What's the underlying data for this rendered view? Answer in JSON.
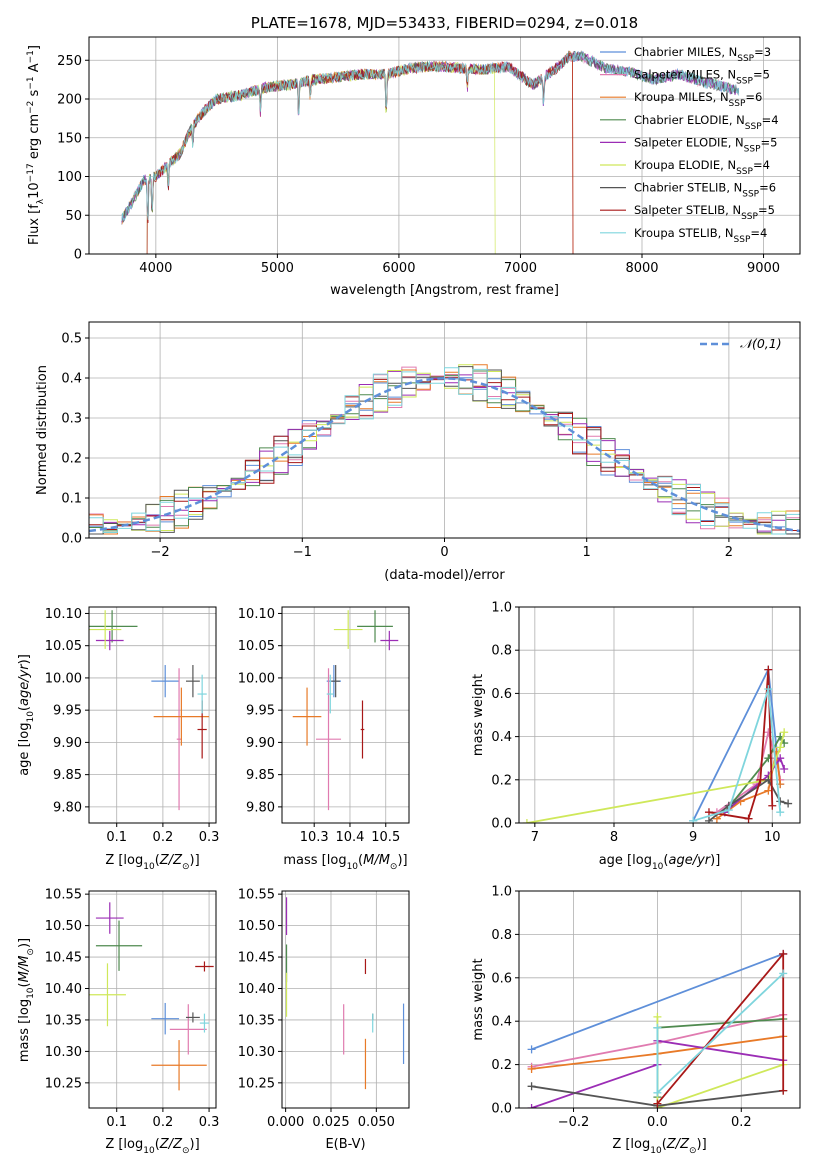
{
  "colors": {
    "chabrier_miles": "#5e8fd9",
    "salpeter_miles": "#e07bb0",
    "kroupa_miles": "#e87a28",
    "chabrier_elodie": "#4f8a4f",
    "salpeter_elodie": "#9b2db5",
    "kroupa_elodie": "#cfe85a",
    "chabrier_stelib": "#555555",
    "salpeter_stelib": "#a81818",
    "kroupa_stelib": "#7fd5dd"
  },
  "chart_data": [
    {
      "type": "line",
      "title": "PLATE=1678, MJD=53433, FIBERID=0294, z=0.018",
      "xlabel": "wavelength [Angstrom, rest frame]",
      "ylabel": "Flux [f_λ10^-17 erg cm^-2 s^-1 A^-1]",
      "xlim": [
        3450,
        9300
      ],
      "ylim": [
        0,
        280
      ],
      "xticks": [
        4000,
        5000,
        6000,
        7000,
        8000,
        9000
      ],
      "yticks": [
        0,
        50,
        100,
        150,
        200,
        250
      ],
      "legend_position": "top-right",
      "series": [
        {
          "name": "Chabrier MILES, N_SSP=3",
          "color_key": "chabrier_miles"
        },
        {
          "name": "Salpeter MILES, N_SSP=5",
          "color_key": "salpeter_miles"
        },
        {
          "name": "Kroupa MILES, N_SSP=6",
          "color_key": "kroupa_miles"
        },
        {
          "name": "Chabrier ELODIE, N_SSP=4",
          "color_key": "chabrier_elodie"
        },
        {
          "name": "Salpeter ELODIE, N_SSP=5",
          "color_key": "salpeter_elodie"
        },
        {
          "name": "Kroupa ELODIE, N_SSP=4",
          "color_key": "kroupa_elodie"
        },
        {
          "name": "Chabrier STELIB, N_SSP=6",
          "color_key": "chabrier_stelib"
        },
        {
          "name": "Salpeter STELIB, N_SSP=5",
          "color_key": "salpeter_stelib"
        },
        {
          "name": "Kroupa STELIB, N_SSP=4",
          "color_key": "kroupa_stelib"
        }
      ],
      "spectrum_envelope": {
        "x": [
          3720,
          3800,
          3900,
          4000,
          4100,
          4200,
          4300,
          4400,
          4500,
          4700,
          4900,
          5100,
          5300,
          5500,
          5700,
          5900,
          6100,
          6300,
          6500,
          6700,
          6900,
          7100,
          7300,
          7400,
          7500,
          7700,
          7900,
          8100,
          8300,
          8500,
          8700,
          8800
        ],
        "y": [
          45,
          65,
          95,
          100,
          115,
          130,
          165,
          185,
          200,
          205,
          215,
          218,
          225,
          228,
          232,
          232,
          240,
          242,
          240,
          238,
          242,
          218,
          240,
          255,
          255,
          240,
          235,
          225,
          232,
          222,
          215,
          210
        ]
      },
      "edges": {
        "kroupa_elodie": {
          "start": 3930,
          "end": 6790
        },
        "salpeter_stelib": {
          "start": 3930,
          "end": 7430
        },
        "kroupa_miles": {
          "end": 7430
        }
      }
    },
    {
      "type": "line",
      "xlabel": "(data-model)/error",
      "ylabel": "Normed distribution",
      "xlim": [
        -2.5,
        2.5
      ],
      "ylim": [
        0,
        0.54
      ],
      "xticks": [
        -2,
        -1,
        0,
        1,
        2
      ],
      "yticks": [
        0.0,
        0.1,
        0.2,
        0.3,
        0.4,
        0.5
      ],
      "legend_position": "top-right",
      "reference": {
        "name": "𝒩(0,1)",
        "style": "dashed"
      }
    },
    {
      "type": "scatter",
      "xlabel": "Z [log10(Z/Z⊙)]",
      "ylabel": "age [log10(age/yr)]",
      "xlim": [
        0.04,
        0.315
      ],
      "ylim": [
        9.775,
        10.11
      ],
      "xticks": [
        0.1,
        0.2,
        0.3
      ],
      "yticks": [
        9.8,
        9.85,
        9.9,
        9.95,
        10.0,
        10.05,
        10.1
      ],
      "points": [
        {
          "key": "chabrier_miles",
          "x": 0.205,
          "xerr": 0.03,
          "y": 9.995,
          "yerr": 0.025
        },
        {
          "key": "salpeter_miles",
          "x": 0.235,
          "xerr": 0.005,
          "y": 9.905,
          "yerr": 0.11
        },
        {
          "key": "kroupa_miles",
          "x": 0.24,
          "xerr": 0.06,
          "y": 9.94,
          "yerr": 0.045
        },
        {
          "key": "chabrier_elodie",
          "x": 0.09,
          "xerr": 0.055,
          "y": 10.08,
          "yerr": 0.025
        },
        {
          "key": "salpeter_elodie",
          "x": 0.085,
          "xerr": 0.03,
          "y": 10.058,
          "yerr": 0.015
        },
        {
          "key": "kroupa_elodie",
          "x": 0.075,
          "xerr": 0.035,
          "y": 10.075,
          "yerr": 0.03
        },
        {
          "key": "chabrier_stelib",
          "x": 0.265,
          "xerr": 0.015,
          "y": 9.995,
          "yerr": 0.025
        },
        {
          "key": "salpeter_stelib",
          "x": 0.285,
          "xerr": 0.01,
          "y": 9.92,
          "yerr": 0.045
        },
        {
          "key": "kroupa_stelib",
          "x": 0.285,
          "xerr": 0.01,
          "y": 9.975,
          "yerr": 0.03
        }
      ]
    },
    {
      "type": "scatter",
      "xlabel": "mass [log10(M/M⊙)]",
      "ylabel": "",
      "xlim": [
        10.21,
        10.565
      ],
      "ylim": [
        9.775,
        10.11
      ],
      "xticks": [
        10.3,
        10.4,
        10.5
      ],
      "yticks": [
        9.8,
        9.85,
        9.9,
        9.95,
        10.0,
        10.05,
        10.1
      ],
      "points": [
        {
          "key": "chabrier_miles",
          "x": 10.355,
          "xerr": 0.02,
          "y": 9.995,
          "yerr": 0.025
        },
        {
          "key": "salpeter_miles",
          "x": 10.34,
          "xerr": 0.035,
          "y": 9.905,
          "yerr": 0.11
        },
        {
          "key": "kroupa_miles",
          "x": 10.28,
          "xerr": 0.04,
          "y": 9.94,
          "yerr": 0.045
        },
        {
          "key": "chabrier_elodie",
          "x": 10.47,
          "xerr": 0.05,
          "y": 10.08,
          "yerr": 0.025
        },
        {
          "key": "salpeter_elodie",
          "x": 10.51,
          "xerr": 0.025,
          "y": 10.058,
          "yerr": 0.015
        },
        {
          "key": "kroupa_elodie",
          "x": 10.395,
          "xerr": 0.04,
          "y": 10.075,
          "yerr": 0.03
        },
        {
          "key": "chabrier_stelib",
          "x": 10.36,
          "xerr": 0.012,
          "y": 9.995,
          "yerr": 0.025
        },
        {
          "key": "salpeter_stelib",
          "x": 10.435,
          "xerr": 0.005,
          "y": 9.92,
          "yerr": 0.045
        },
        {
          "key": "kroupa_stelib",
          "x": 10.345,
          "xerr": 0.01,
          "y": 9.975,
          "yerr": 0.03
        }
      ]
    },
    {
      "type": "line",
      "xlabel": "age [log10(age/yr)]",
      "ylabel": "mass weight",
      "xlim": [
        6.8,
        10.35
      ],
      "ylim": [
        0,
        1.0
      ],
      "xticks": [
        7,
        8,
        9,
        10
      ],
      "yticks": [
        0.0,
        0.2,
        0.4,
        0.6,
        0.8,
        1.0
      ],
      "series": [
        {
          "key": "chabrier_miles",
          "x": [
            9.0,
            9.95,
            10.1
          ],
          "y": [
            0.01,
            0.71,
            0.18
          ]
        },
        {
          "key": "salpeter_miles",
          "x": [
            9.3,
            9.8,
            9.95,
            10.05,
            10.1
          ],
          "y": [
            0.05,
            0.18,
            0.42,
            0.3,
            0.2
          ]
        },
        {
          "key": "kroupa_miles",
          "x": [
            9.3,
            9.6,
            9.95,
            10.05,
            10.1
          ],
          "y": [
            0.02,
            0.1,
            0.15,
            0.33,
            0.18
          ]
        },
        {
          "key": "chabrier_elodie",
          "x": [
            9.4,
            9.95,
            10.1,
            10.15
          ],
          "y": [
            0.05,
            0.3,
            0.4,
            0.37
          ]
        },
        {
          "key": "salpeter_elodie",
          "x": [
            9.4,
            9.95,
            10.1,
            10.15
          ],
          "y": [
            0.05,
            0.22,
            0.3,
            0.25
          ]
        },
        {
          "key": "kroupa_elodie",
          "x": [
            6.9,
            9.95,
            10.1,
            10.15
          ],
          "y": [
            0.0,
            0.2,
            0.35,
            0.42
          ]
        },
        {
          "key": "chabrier_stelib",
          "x": [
            9.2,
            9.45,
            9.95,
            10.1,
            10.2
          ],
          "y": [
            0.01,
            0.08,
            0.2,
            0.1,
            0.09
          ]
        },
        {
          "key": "salpeter_stelib",
          "x": [
            9.2,
            9.7,
            9.85,
            9.95,
            10.0
          ],
          "y": [
            0.05,
            0.02,
            0.2,
            0.71,
            0.08
          ]
        },
        {
          "key": "kroupa_stelib",
          "x": [
            9.0,
            9.45,
            9.95,
            10.1
          ],
          "y": [
            0.01,
            0.06,
            0.62,
            0.05
          ]
        }
      ]
    },
    {
      "type": "scatter",
      "xlabel": "Z [log10(Z/Z⊙)]",
      "ylabel": "mass [log10(M/M⊙)]",
      "xlim": [
        0.04,
        0.315
      ],
      "ylim": [
        10.21,
        10.555
      ],
      "xticks": [
        0.1,
        0.2,
        0.3
      ],
      "yticks": [
        10.25,
        10.3,
        10.35,
        10.4,
        10.45,
        10.5,
        10.55
      ],
      "points": [
        {
          "key": "chabrier_miles",
          "x": 0.205,
          "xerr": 0.03,
          "y": 10.352,
          "yerr": 0.025
        },
        {
          "key": "salpeter_miles",
          "x": 0.255,
          "xerr": 0.04,
          "y": 10.335,
          "yerr": 0.04
        },
        {
          "key": "kroupa_miles",
          "x": 0.235,
          "xerr": 0.06,
          "y": 10.278,
          "yerr": 0.04
        },
        {
          "key": "chabrier_elodie",
          "x": 0.105,
          "xerr": 0.05,
          "y": 10.468,
          "yerr": 0.04
        },
        {
          "key": "salpeter_elodie",
          "x": 0.085,
          "xerr": 0.03,
          "y": 10.512,
          "yerr": 0.025
        },
        {
          "key": "kroupa_elodie",
          "x": 0.08,
          "xerr": 0.04,
          "y": 10.39,
          "yerr": 0.05
        },
        {
          "key": "chabrier_stelib",
          "x": 0.265,
          "xerr": 0.015,
          "y": 10.354,
          "yerr": 0.008
        },
        {
          "key": "salpeter_stelib",
          "x": 0.29,
          "xerr": 0.02,
          "y": 10.435,
          "yerr": 0.008
        },
        {
          "key": "kroupa_stelib",
          "x": 0.29,
          "xerr": 0.01,
          "y": 10.345,
          "yerr": 0.015
        }
      ]
    },
    {
      "type": "scatter",
      "xlabel": "E(B-V)",
      "ylabel": "",
      "xlim": [
        -0.002,
        0.068
      ],
      "ylim": [
        10.21,
        10.555
      ],
      "xticks": [
        0.0,
        0.025,
        0.05
      ],
      "xticklabels": [
        "0.000",
        "0.025",
        "0.050"
      ],
      "yticks": [
        10.25,
        10.3,
        10.35,
        10.4,
        10.45,
        10.5,
        10.55
      ],
      "points": [
        {
          "key": "chabrier_miles",
          "x": 0.065,
          "y": 10.328,
          "yerr": 0.048
        },
        {
          "key": "salpeter_miles",
          "x": 0.032,
          "y": 10.335,
          "yerr": 0.04
        },
        {
          "key": "kroupa_miles",
          "x": 0.044,
          "y": 10.28,
          "yerr": 0.04
        },
        {
          "key": "chabrier_elodie",
          "x": 0.0005,
          "y": 10.44,
          "yerr": 0.03
        },
        {
          "key": "salpeter_elodie",
          "x": 0.0005,
          "y": 10.515,
          "yerr": 0.03
        },
        {
          "key": "kroupa_elodie",
          "x": 0.0005,
          "y": 10.39,
          "yerr": 0.035
        },
        {
          "key": "chabrier_stelib",
          "x": 0.048,
          "y": 10.355,
          "yerr": 0.005
        },
        {
          "key": "salpeter_stelib",
          "x": 0.044,
          "y": 10.435,
          "yerr": 0.012
        },
        {
          "key": "kroupa_stelib",
          "x": 0.048,
          "y": 10.345,
          "yerr": 0.015
        }
      ]
    },
    {
      "type": "line",
      "xlabel": "Z [log10(Z/Z⊙)]",
      "ylabel": "mass weight",
      "xlim": [
        -0.33,
        0.34
      ],
      "ylim": [
        0,
        1.0
      ],
      "xticks": [
        -0.2,
        0.0,
        0.2
      ],
      "yticks": [
        0.0,
        0.2,
        0.4,
        0.6,
        0.8,
        1.0
      ],
      "series": [
        {
          "key": "chabrier_miles",
          "x": [
            -0.3,
            0.3
          ],
          "y": [
            0.27,
            0.71
          ]
        },
        {
          "key": "salpeter_miles",
          "x": [
            -0.3,
            0.0,
            0.3
          ],
          "y": [
            0.19,
            0.3,
            0.43
          ]
        },
        {
          "key": "kroupa_miles",
          "x": [
            -0.3,
            0.0,
            0.3
          ],
          "y": [
            0.18,
            0.25,
            0.33
          ]
        },
        {
          "key": "chabrier_elodie",
          "x": [
            0.0,
            0.0,
            0.3
          ],
          "y": [
            0.05,
            0.37,
            0.41
          ]
        },
        {
          "key": "salpeter_elodie",
          "x": [
            -0.3,
            0.0,
            0.0,
            0.3
          ],
          "y": [
            0.0,
            0.2,
            0.31,
            0.22
          ]
        },
        {
          "key": "kroupa_elodie",
          "x": [
            0.0,
            0.0,
            0.3
          ],
          "y": [
            0.42,
            0.0,
            0.2
          ]
        },
        {
          "key": "chabrier_stelib",
          "x": [
            -0.3,
            0.0,
            0.3
          ],
          "y": [
            0.1,
            0.01,
            0.08
          ]
        },
        {
          "key": "salpeter_stelib",
          "x": [
            0.0,
            0.3,
            0.3
          ],
          "y": [
            0.02,
            0.71,
            0.08
          ]
        },
        {
          "key": "kroupa_stelib",
          "x": [
            0.0,
            0.0,
            0.3
          ],
          "y": [
            0.37,
            0.07,
            0.62
          ]
        }
      ]
    }
  ]
}
